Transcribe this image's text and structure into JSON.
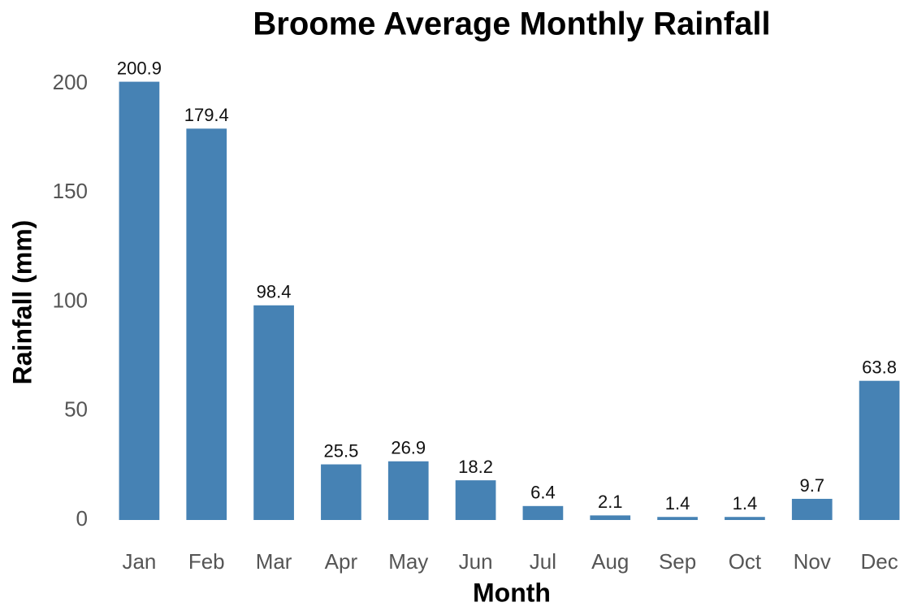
{
  "chart_data": {
    "type": "bar",
    "title": "Broome Average Monthly Rainfall",
    "x_label": "Month",
    "y_label": "Rainfall (mm)",
    "categories": [
      "Jan",
      "Feb",
      "Mar",
      "Apr",
      "May",
      "Jun",
      "Jul",
      "Aug",
      "Sep",
      "Oct",
      "Nov",
      "Dec"
    ],
    "values": [
      200.9,
      179.4,
      98.4,
      25.5,
      26.9,
      18.2,
      6.4,
      2.1,
      1.4,
      1.4,
      9.7,
      63.8
    ],
    "color": "#4682b4",
    "ylim": [
      0,
      210
    ],
    "yticks": [
      0,
      50,
      100,
      150,
      200
    ],
    "grid": false
  }
}
